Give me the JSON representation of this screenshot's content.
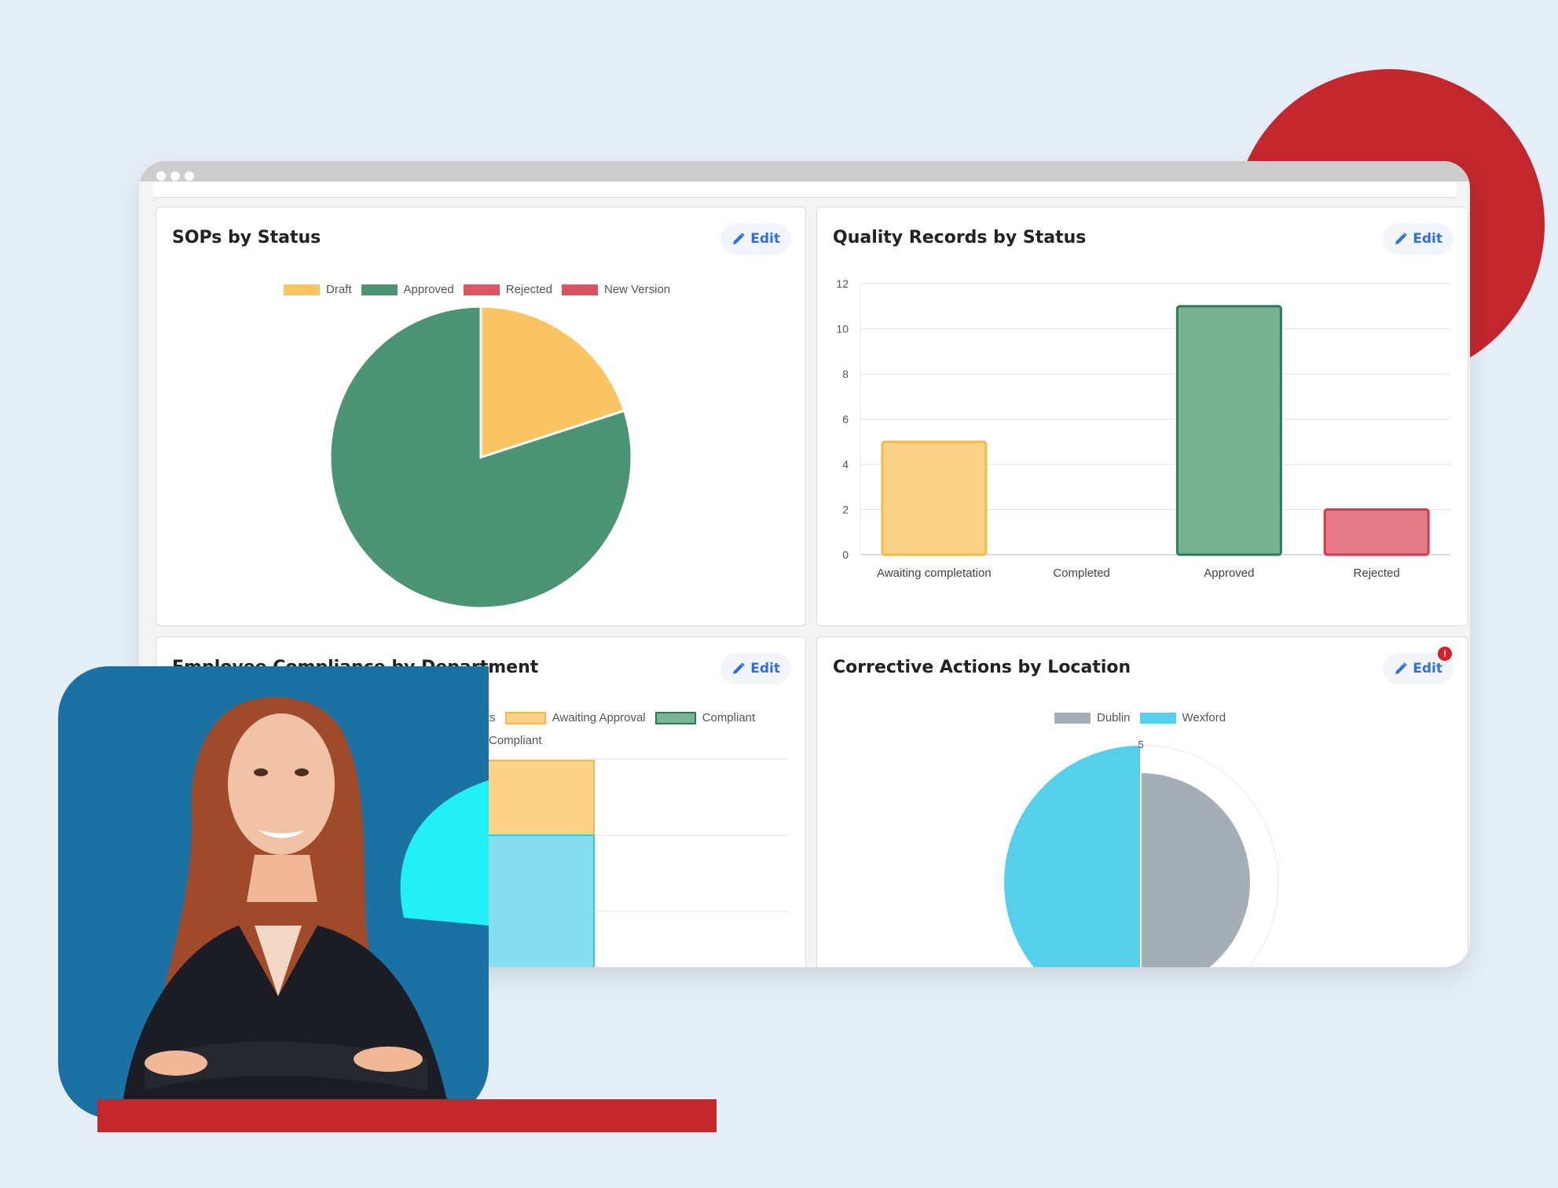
{
  "cards": {
    "sops": {
      "title": "SOPs by Status",
      "edit_label": "Edit",
      "legend": [
        {
          "label": "Draft",
          "color": "#fbc463"
        },
        {
          "label": "Approved",
          "color": "#4c9473"
        },
        {
          "label": "Rejected",
          "color": "#e05566"
        },
        {
          "label": "New Version",
          "color": "#dd5260"
        }
      ]
    },
    "quality": {
      "title": "Quality Records by Status",
      "edit_label": "Edit"
    },
    "employee": {
      "title": "Employee Compliance by Department",
      "edit_label": "Edit",
      "legend": [
        {
          "label": "ts",
          "color": ""
        },
        {
          "label": "Awaiting Approval",
          "color": "#fdd38c"
        },
        {
          "label": "Compliant",
          "color": "#7bb397"
        },
        {
          "label": "Compliant",
          "color": ""
        }
      ]
    },
    "corrective": {
      "title": "Corrective Actions by Location",
      "edit_label": "Edit",
      "badge": "!",
      "legend": [
        {
          "label": "Dublin",
          "color": "#a5aeb6"
        },
        {
          "label": "Wexford",
          "color": "#55cfea"
        }
      ]
    }
  },
  "chart_data": [
    {
      "type": "pie",
      "title": "SOPs by Status",
      "labels": [
        "Draft",
        "Approved",
        "Rejected",
        "New Version"
      ],
      "values": [
        1,
        4,
        0,
        0
      ]
    },
    {
      "type": "bar",
      "title": "Quality Records by Status",
      "categories": [
        "Awaiting completation",
        "Completed",
        "Approved",
        "Rejected"
      ],
      "values": [
        5,
        0,
        11,
        2
      ],
      "yticks": [
        "0",
        "2",
        "4",
        "6",
        "8",
        "10",
        "12"
      ],
      "ylim": [
        0,
        12
      ],
      "grid": true,
      "colors": [
        "#fdd38c",
        "#cccccc",
        "#78b293",
        "#e47b87"
      ],
      "borders": [
        "#f6b945",
        "#999999",
        "#2e7a55",
        "#d13a4e"
      ]
    },
    {
      "type": "polarArea",
      "title": "Corrective Actions by Location",
      "labels": [
        "Dublin",
        "Wexford"
      ],
      "values": [
        4,
        5
      ],
      "r_max": 5,
      "r_tick_label": "5"
    }
  ]
}
